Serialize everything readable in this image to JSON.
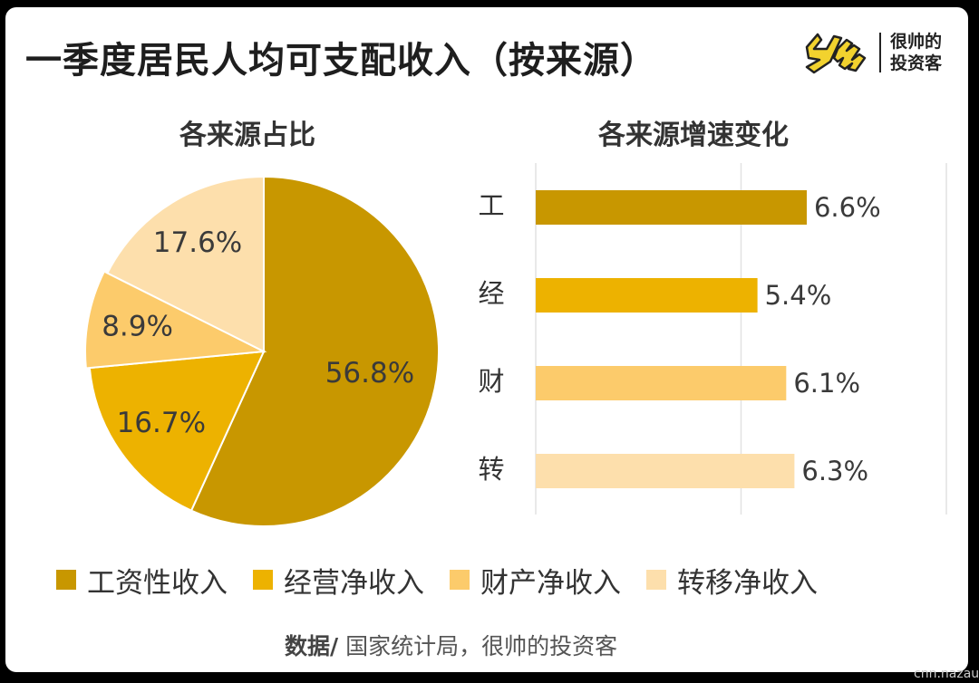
{
  "title": "一季度居民人均可支配收入（按来源）",
  "brand": {
    "line1": "很帅的",
    "line2": "投资客"
  },
  "pie_title": "各来源占比",
  "bar_title": "各来源增速变化",
  "legend": [
    {
      "label": "工资性收入",
      "color": "#C89700"
    },
    {
      "label": "经营净收入",
      "color": "#EDB200"
    },
    {
      "label": "财产净收入",
      "color": "#FCCB6B"
    },
    {
      "label": "转移净收入",
      "color": "#FDDFAC"
    }
  ],
  "source": {
    "prefix": "数据/",
    "text": " 国家统计局，很帅的投资客"
  },
  "watermark": "cnn.nazau",
  "chart_data": [
    {
      "type": "pie",
      "title": "各来源占比",
      "categories": [
        "工资性收入",
        "经营净收入",
        "财产净收入",
        "转移净收入"
      ],
      "values": [
        56.8,
        16.7,
        8.9,
        17.6
      ],
      "labels": [
        "56.8%",
        "16.7%",
        "8.9%",
        "17.6%"
      ],
      "colors": [
        "#C89700",
        "#EDB200",
        "#FCCB6B",
        "#FDDFAC"
      ]
    },
    {
      "type": "bar",
      "orientation": "horizontal",
      "title": "各来源增速变化",
      "categories": [
        "工",
        "经",
        "财",
        "转"
      ],
      "values": [
        6.6,
        5.4,
        6.1,
        6.3
      ],
      "labels": [
        "6.6%",
        "5.4%",
        "6.1%",
        "6.3%"
      ],
      "colors": [
        "#C89700",
        "#EDB200",
        "#FCCB6B",
        "#FDDFAC"
      ],
      "xlim": [
        0,
        10
      ],
      "grid": true
    }
  ]
}
